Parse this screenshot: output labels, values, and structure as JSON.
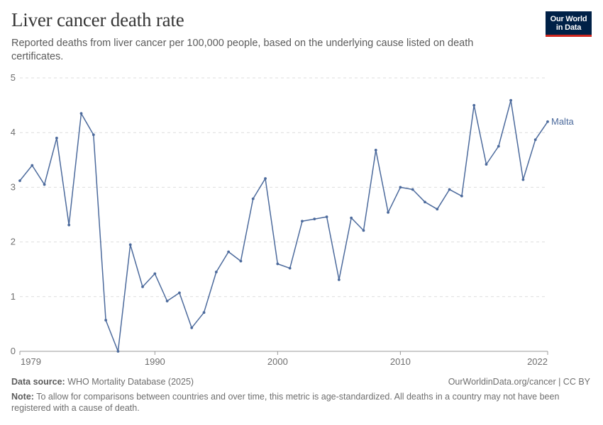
{
  "header": {
    "title": "Liver cancer death rate",
    "subtitle": "Reported deaths from liver cancer per 100,000 people, based on the underlying cause listed on death certificates."
  },
  "logo": {
    "line1": "Our World",
    "line2": "in Data",
    "bg_color": "#002147",
    "accent_color": "#ce261e"
  },
  "footer": {
    "source_label": "Data source:",
    "source_text": "WHO Mortality Database (2025)",
    "license": "OurWorldinData.org/cancer | CC BY",
    "note_label": "Note:",
    "note_text": "To allow for comparisons between countries and over time, this metric is age-standardized. All deaths in a country may not have been registered with a cause of death."
  },
  "chart_data": {
    "type": "line",
    "title": "Liver cancer death rate",
    "xlabel": "",
    "ylabel": "",
    "xlim": [
      1979,
      2022
    ],
    "ylim": [
      0,
      5
    ],
    "y_ticks": [
      0,
      1,
      2,
      3,
      4,
      5
    ],
    "x_ticks": [
      1979,
      1990,
      2000,
      2010,
      2022
    ],
    "grid": "horizontal dashed",
    "legend": "inline label at line end",
    "series": [
      {
        "name": "Malta",
        "color": "#4c6a9c",
        "x": [
          1979,
          1980,
          1981,
          1982,
          1983,
          1984,
          1985,
          1986,
          1987,
          1988,
          1989,
          1990,
          1991,
          1992,
          1993,
          1994,
          1995,
          1996,
          1997,
          1998,
          1999,
          2000,
          2001,
          2002,
          2003,
          2004,
          2005,
          2006,
          2007,
          2008,
          2009,
          2010,
          2011,
          2012,
          2013,
          2014,
          2015,
          2016,
          2017,
          2018,
          2019,
          2020,
          2021,
          2022
        ],
        "y": [
          3.12,
          3.4,
          3.05,
          3.9,
          2.31,
          4.35,
          3.96,
          0.57,
          0.0,
          1.95,
          1.18,
          1.42,
          0.92,
          1.07,
          0.43,
          0.71,
          1.45,
          1.82,
          1.65,
          2.79,
          3.16,
          1.6,
          1.52,
          2.38,
          2.42,
          2.46,
          1.31,
          2.44,
          2.21,
          3.68,
          2.54,
          3.0,
          2.96,
          2.73,
          2.6,
          2.96,
          2.84,
          4.5,
          3.42,
          3.75,
          4.59,
          3.14,
          3.87,
          4.2
        ]
      }
    ]
  }
}
